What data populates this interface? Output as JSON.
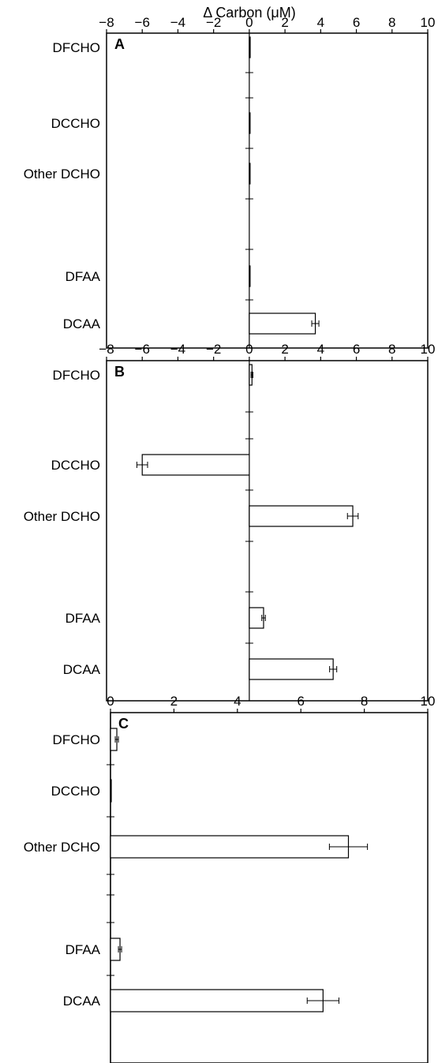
{
  "chart_data": [
    {
      "type": "bar",
      "orientation": "horizontal",
      "panel_label": "A",
      "xlabel": "Δ Carbon (μM)",
      "xlim": [
        -8,
        10
      ],
      "xticks": [
        -8,
        -6,
        -4,
        -2,
        0,
        2,
        4,
        6,
        8,
        10
      ],
      "tick_labels": [
        "−8",
        "−6",
        "−4",
        "−2",
        "0",
        "2",
        "4",
        "6",
        "8",
        "10"
      ],
      "categories": [
        "DFCHO",
        "DCCHO",
        "Other DCHO",
        "DFAA",
        "DCAA"
      ],
      "values": [
        0.05,
        0.0,
        0.0,
        0.0,
        3.7
      ],
      "errors": [
        0.0,
        0.0,
        0.0,
        0.0,
        0.2
      ]
    },
    {
      "type": "bar",
      "orientation": "horizontal",
      "panel_label": "B",
      "xlim": [
        -8,
        10
      ],
      "xticks": [
        -8,
        -6,
        -4,
        -2,
        0,
        2,
        4,
        6,
        8,
        10
      ],
      "tick_labels": [
        "−8",
        "−6",
        "−4",
        "−2",
        "0",
        "2",
        "4",
        "6",
        "8",
        "10"
      ],
      "categories": [
        "DFCHO",
        "DCCHO",
        "Other DCHO",
        "DFAA",
        "DCAA"
      ],
      "values": [
        0.15,
        -6.0,
        5.8,
        0.8,
        4.7
      ],
      "errors": [
        0.05,
        0.3,
        0.3,
        0.1,
        0.2
      ]
    },
    {
      "type": "bar",
      "orientation": "horizontal",
      "panel_label": "C",
      "xlim": [
        0,
        10
      ],
      "xticks": [
        0,
        2,
        4,
        6,
        8,
        10
      ],
      "tick_labels": [
        "0",
        "2",
        "4",
        "6",
        "8",
        "10"
      ],
      "categories": [
        "DFCHO",
        "DCCHO",
        "Other DCHO",
        "DFAA",
        "DCAA"
      ],
      "values": [
        0.2,
        0.0,
        7.5,
        0.3,
        6.7
      ],
      "errors": [
        0.05,
        0.0,
        0.6,
        0.05,
        0.5
      ]
    }
  ]
}
